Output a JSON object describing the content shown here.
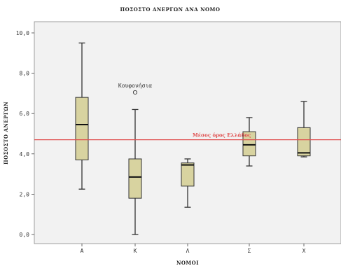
{
  "chart_data": {
    "type": "box",
    "title": "ΠΟΣΟΣΤΟ ΑΝΕΡΓΩΝ ΑΝΑ ΝΟΜΟ",
    "xlabel": "ΝΟΜΟΙ",
    "ylabel": "ΠΟΣΟΣΤΟ ΑΝΕΡΓΩΝ",
    "ylim": [
      -0.5,
      10.5
    ],
    "y_ticks": [
      "0,0",
      "2,0",
      "4,0",
      "6,0",
      "8,0",
      "10,0"
    ],
    "y_tick_values": [
      0,
      2,
      4,
      6,
      8,
      10
    ],
    "grid": false,
    "categories": [
      "Α",
      "Κ",
      "Λ",
      "Σ",
      "Χ"
    ],
    "boxes": [
      {
        "category": "Α",
        "min": 2.25,
        "q1": 3.7,
        "median": 5.45,
        "q3": 6.8,
        "max": 9.5
      },
      {
        "category": "Κ",
        "min": 0.0,
        "q1": 1.8,
        "median": 2.85,
        "q3": 3.75,
        "max": 6.2
      },
      {
        "category": "Λ",
        "min": 1.35,
        "q1": 2.4,
        "median": 3.45,
        "q3": 3.55,
        "max": 3.75
      },
      {
        "category": "Σ",
        "min": 3.4,
        "q1": 3.9,
        "median": 4.45,
        "q3": 5.1,
        "max": 5.8
      },
      {
        "category": "Χ",
        "min": 3.85,
        "q1": 3.9,
        "median": 4.05,
        "q3": 5.3,
        "max": 6.6
      }
    ],
    "outliers": [
      {
        "category": "Κ",
        "value": 7.05,
        "label": "Κουφονήσια"
      }
    ],
    "reference_line": {
      "value": 4.7,
      "label": "Μέσος όρος Ελλάδος",
      "color": "#e05050"
    },
    "colors": {
      "plot_background": "#f2f2f2",
      "box_fill": "#d8d3a0",
      "box_stroke": "#333333"
    }
  }
}
